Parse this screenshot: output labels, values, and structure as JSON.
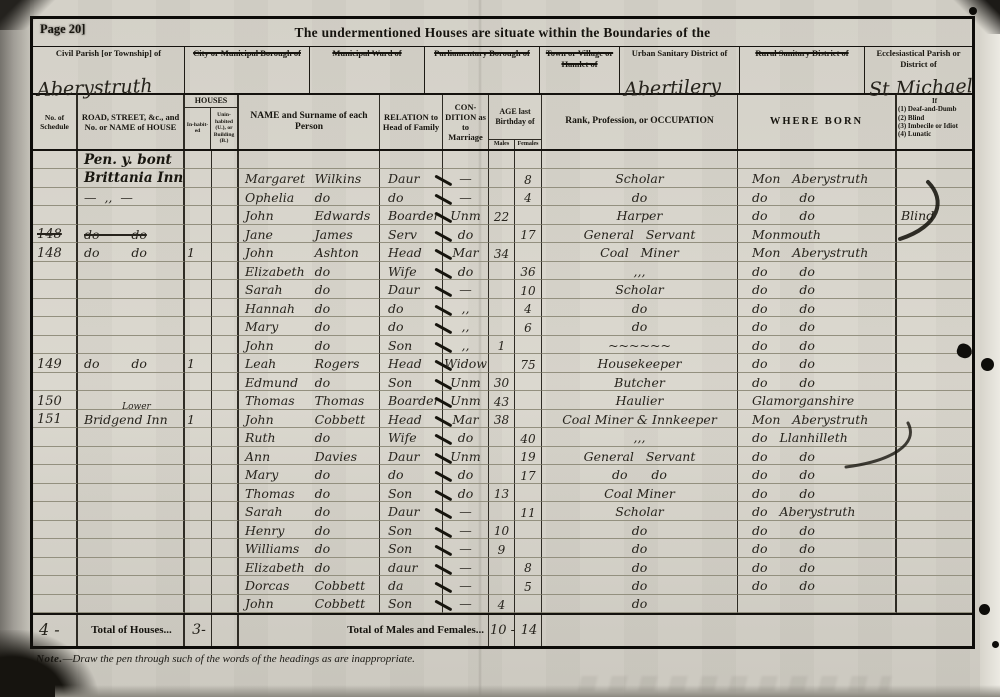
{
  "page": {
    "page_label": "Page 20]",
    "title": "The undermentioned Houses are situate within the Boundaries of the",
    "note_label": "Note.",
    "note_body": "—Draw the pen through such of the words of the headings as are inappropriate."
  },
  "district_fields": [
    {
      "label": "Civil Parish [or Township] of",
      "value": "Aberystruth",
      "struck": false
    },
    {
      "label": "City or Municipal Borough of",
      "value": "",
      "struck": true
    },
    {
      "label": "Municipal Ward of",
      "value": "",
      "struck": true
    },
    {
      "label": "Parliamentary Borough of",
      "value": "",
      "struck": true
    },
    {
      "label": "Town or Village or Hamlet of",
      "value": "",
      "struck": true
    },
    {
      "label": "Urban Sanitary District of",
      "value": "Abertilery",
      "struck": false
    },
    {
      "label": "Rural Sanitary District of",
      "value": "",
      "struck": true
    },
    {
      "label": "Ecclesiastical Parish or District of",
      "value": "St Michael",
      "struck": false
    }
  ],
  "columns": {
    "schedule": "No. of Schedule",
    "street": "ROAD, STREET, &c., and No. or NAME of HOUSE",
    "houses": "HOUSES",
    "inhabited": "In-habit-ed",
    "uninhabited": "Unin-habited (U.), or Building (B.)",
    "name": "NAME and Surname of each Person",
    "relation": "RELATION to Head of Family",
    "condition": "CON-DITION as to Marriage",
    "age": "AGE last Birthday of",
    "males": "Males",
    "females": "Females",
    "occupation": "Rank, Profession, or OCCUPATION",
    "born": "WHERE BORN",
    "infirmity_heading": "If",
    "infirmity_items": [
      "(1) Deaf-and-Dumb",
      "(2) Blind",
      "(3) Imbecile or Idiot",
      "(4) Lunatic"
    ]
  },
  "rows": [
    {
      "street": "Pen. y. bont"
    },
    {
      "street": "Brittania Inn",
      "given": "Margaret",
      "surname": "Wilkins",
      "relation": "Daur",
      "tick": true,
      "condition": "—",
      "age_f": "8",
      "occupation": "Scholar",
      "born": "Mon   Aberystruth"
    },
    {
      "street": "—  ,,  —",
      "given": "Ophelia",
      "surname": "do",
      "relation": "do",
      "tick": true,
      "condition": "—",
      "age_f": "4",
      "occupation": "do",
      "born": "do        do"
    },
    {
      "given": "John",
      "surname": "Edwards",
      "relation": "Boarder",
      "tick": true,
      "condition": "Unm",
      "age_m": "22",
      "occupation": "Harper",
      "born": "do        do",
      "infirmity": "Blind"
    },
    {
      "schedule": "148",
      "street": "do        do",
      "given": "Jane",
      "surname": "James",
      "relation": "Serv",
      "tick": true,
      "condition": "do",
      "age_f": "17",
      "occupation": "General   Servant",
      "born": "Monmouth",
      "struck": [
        "schedule",
        "street"
      ]
    },
    {
      "schedule": "148",
      "street": "do        do",
      "inhabited": "1",
      "given": "John",
      "surname": "Ashton",
      "relation": "Head",
      "tick": true,
      "condition": "Mar",
      "age_m": "34",
      "occupation": "Coal   Miner",
      "born": "Mon   Aberystruth"
    },
    {
      "given": "Elizabeth",
      "surname": "do",
      "relation": "Wife",
      "tick": true,
      "condition": "do",
      "age_f": "36",
      "occupation": ",,,",
      "born": "do        do"
    },
    {
      "given": "Sarah",
      "surname": "do",
      "relation": "Daur",
      "tick": true,
      "condition": "—",
      "age_f": "10",
      "occupation": "Scholar",
      "born": "do        do"
    },
    {
      "given": "Hannah",
      "surname": "do",
      "relation": "do",
      "tick": true,
      "condition": ",,",
      "age_f": "4",
      "occupation": "do",
      "born": "do        do"
    },
    {
      "given": "Mary",
      "surname": "do",
      "relation": "do",
      "tick": true,
      "condition": ",,",
      "age_f": "6",
      "occupation": "do",
      "born": "do        do"
    },
    {
      "given": "John",
      "surname": "do",
      "relation": "Son",
      "tick": true,
      "condition": ",,",
      "age_m": "1",
      "occupation": "~~~~~~",
      "born": "do        do"
    },
    {
      "schedule": "149",
      "street": "do        do",
      "inhabited": "1",
      "given": "Leah",
      "surname": "Rogers",
      "relation": "Head",
      "tick": true,
      "condition": "Widow",
      "age_f": "75",
      "occupation": "Housekeeper",
      "born": "do        do"
    },
    {
      "given": "Edmund",
      "surname": "do",
      "relation": "Son",
      "tick": true,
      "condition": "Unm",
      "age_m": "30",
      "occupation": "Butcher",
      "born": "do        do"
    },
    {
      "schedule": "150",
      "given": "Thomas",
      "surname": "Thomas",
      "relation": "Boarder",
      "tick": true,
      "condition": "Unm",
      "age_m": "43",
      "occupation": "Haulier",
      "born": "Glamorganshire"
    },
    {
      "schedule": "151",
      "street": "Bridgend Inn",
      "street_super": "Lower",
      "inhabited": "1",
      "given": "John",
      "surname": "Cobbett",
      "relation": "Head",
      "tick": true,
      "condition": "Mar",
      "age_m": "38",
      "occupation": "Coal Miner & Innkeeper",
      "born": "Mon   Aberystruth"
    },
    {
      "given": "Ruth",
      "surname": "do",
      "relation": "Wife",
      "tick": true,
      "condition": "do",
      "age_f": "40",
      "occupation": ",,,",
      "born": "do   Llanhilleth"
    },
    {
      "given": "Ann",
      "surname": "Davies",
      "relation": "Daur",
      "tick": true,
      "condition": "Unm",
      "age_f": "19",
      "occupation": "General   Servant",
      "born": "do        do"
    },
    {
      "given": "Mary",
      "surname": "do",
      "relation": "do",
      "tick": true,
      "condition": "do",
      "age_f": "17",
      "occupation": "do      do",
      "born": "do        do"
    },
    {
      "given": "Thomas",
      "surname": "do",
      "relation": "Son",
      "tick": true,
      "condition": "do",
      "age_m": "13",
      "occupation": "Coal Miner",
      "born": "do        do"
    },
    {
      "given": "Sarah",
      "surname": "do",
      "relation": "Daur",
      "tick": true,
      "condition": "—",
      "age_f": "11",
      "occupation": "Scholar",
      "born": "do   Aberystruth"
    },
    {
      "given": "Henry",
      "surname": "do",
      "relation": "Son",
      "tick": true,
      "condition": "—",
      "age_m": "10",
      "occupation": "do",
      "born": "do        do"
    },
    {
      "given": "Williams",
      "surname": "do",
      "relation": "Son",
      "tick": true,
      "condition": "—",
      "age_m": "9",
      "occupation": "do",
      "born": "do        do"
    },
    {
      "given": "Elizabeth",
      "surname": "do",
      "relation": "daur",
      "tick": true,
      "condition": "—",
      "age_f": "8",
      "occupation": "do",
      "born": "do        do"
    },
    {
      "given": "Dorcas",
      "surname": "Cobbett",
      "relation": "da",
      "tick": true,
      "condition": "—",
      "age_f": "5",
      "occupation": "do",
      "born": "do        do"
    },
    {
      "given": "John",
      "surname": "Cobbett",
      "relation": "Son",
      "tick": true,
      "condition": "—",
      "age_m": "4",
      "occupation": "do"
    }
  ],
  "totals": {
    "schedule_note": "4 -",
    "houses_label": "Total of Houses...",
    "houses_value": "3-",
    "males_females_label": "Total of Males and Females...",
    "males": "10 -",
    "females": "14"
  }
}
